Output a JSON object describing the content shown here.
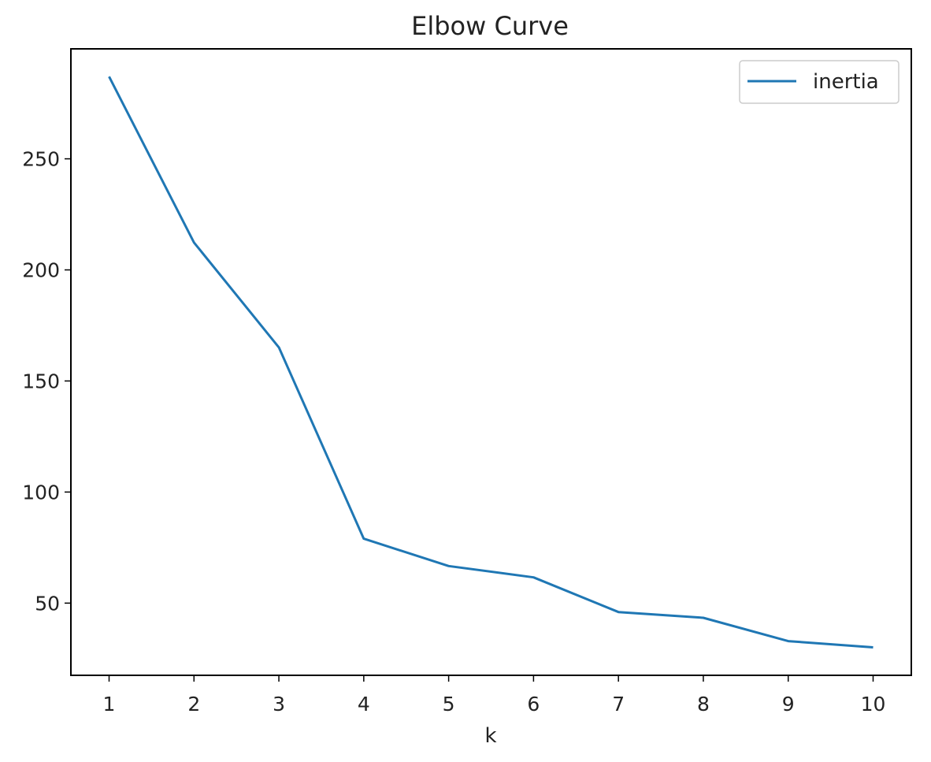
{
  "chart_data": {
    "type": "line",
    "title": "Elbow Curve",
    "xlabel": "k",
    "ylabel": "",
    "x": [
      1,
      2,
      3,
      4,
      5,
      6,
      7,
      8,
      9,
      10
    ],
    "xticks": [
      "1",
      "2",
      "3",
      "4",
      "5",
      "6",
      "7",
      "8",
      "9",
      "10"
    ],
    "xlim": [
      0.55,
      10.45
    ],
    "yticks": [
      "50",
      "100",
      "150",
      "200",
      "250"
    ],
    "ytick_values": [
      50,
      100,
      150,
      200,
      250
    ],
    "ylim": [
      17.5,
      299.5
    ],
    "series": [
      {
        "name": "inertia",
        "color": "#1f77b4",
        "values": [
          287.0,
          212.3,
          165.1,
          79.0,
          66.7,
          61.6,
          46.0,
          43.4,
          32.9,
          30.1
        ]
      }
    ],
    "legend": "top-right",
    "grid": false
  }
}
